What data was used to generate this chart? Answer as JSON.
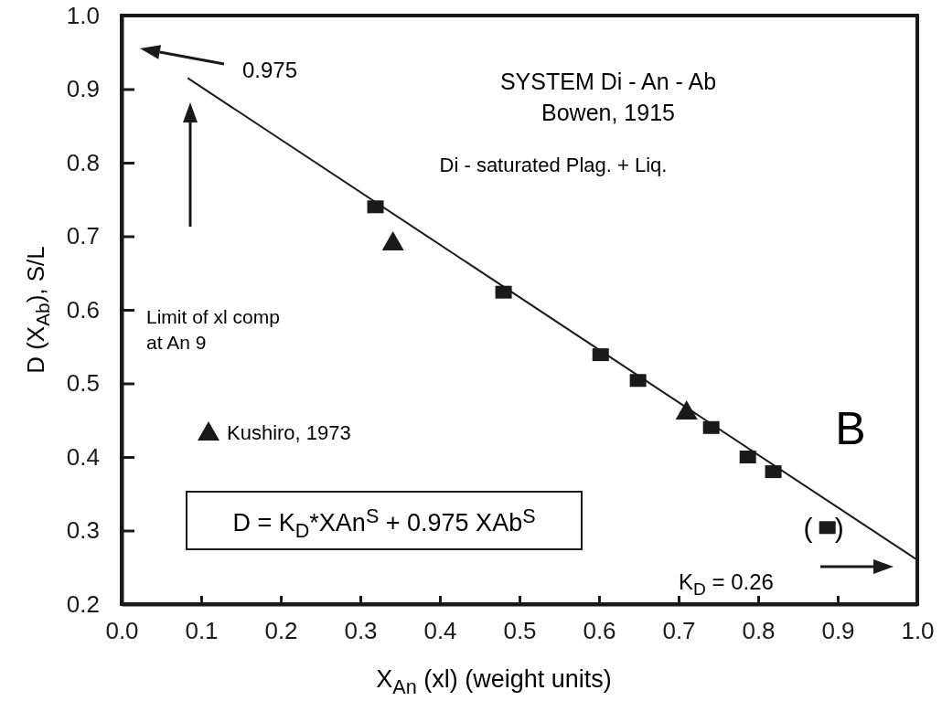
{
  "chart_data": {
    "type": "scatter",
    "title": "SYSTEM Di - An - Ab",
    "subtitle": "Bowen, 1915",
    "xlabel": "X$_{An}$ (xl) (weight units)",
    "ylabel": "D (X$_{Ab}$), S/L",
    "xlim": [
      0,
      1
    ],
    "ylim": [
      0.2,
      1
    ],
    "xticks": [
      {
        "value": 0,
        "label": "0.0"
      },
      0.1,
      0.2,
      0.3,
      0.4,
      0.5,
      0.6,
      0.7,
      0.8,
      0.9,
      {
        "value": 1,
        "label": "1.0"
      }
    ],
    "yticks": [
      0.2,
      0.3,
      0.4,
      0.5,
      0.6,
      0.7,
      0.8,
      0.9,
      {
        "value": 1,
        "label": "1.0"
      }
    ],
    "grid": false,
    "legend": "bottom left",
    "series": [
      {
        "type": "scatter",
        "marker": "square",
        "color": "#1a1a1a",
        "x": [
          0.319,
          0.48,
          0.602,
          0.649,
          0.741,
          0.787,
          0.819,
          0.887
        ],
        "values": [
          0.74,
          0.624,
          0.539,
          0.504,
          0.44,
          0.4,
          0.38,
          0.304
        ]
      },
      {
        "type": "scatter",
        "marker": "triangle",
        "name": "Kushiro, 1973",
        "color": "#1a1a1a",
        "x": [
          0.341,
          0.71
        ],
        "values": [
          0.692,
          0.462
        ]
      },
      {
        "type": "line",
        "marker": "none",
        "line_style": "solid",
        "color": "#1a1a1a",
        "x": [
          0.083,
          1.0
        ],
        "values": [
          0.915,
          0.26
        ]
      }
    ],
    "annotations": [
      "0.975",
      "Limit of xl comp\nat An 9",
      "K$_{D}$ = 0.26",
      {
        "text": "( )",
        "x": 0.887,
        "y": 0.304
      },
      "Di - saturated Plag. + Liq.",
      "B",
      "D = K$_{D}$*XAn$^{S}$ + 0.975 XAb$^{S}$"
    ]
  }
}
